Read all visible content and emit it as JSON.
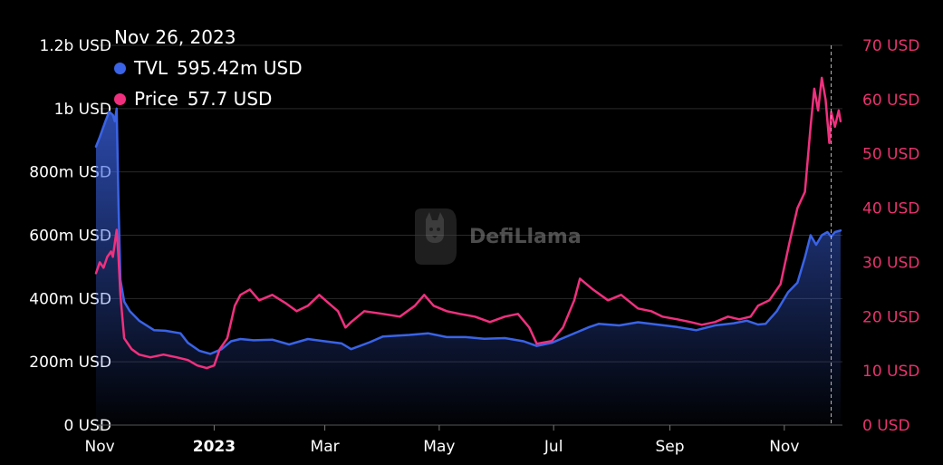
{
  "colors": {
    "tvl": "#3a63e6",
    "price": "#f0307e",
    "price_axis": "#e8336f",
    "grid": "#2a2a2a",
    "background": "#000000"
  },
  "tooltip": {
    "date": "Nov 26, 2023",
    "tvl_label": "TVL",
    "tvl_value": "595.42m USD",
    "price_label": "Price",
    "price_value": "57.7 USD"
  },
  "watermark": {
    "text": "DefiLlama",
    "icon": "llama-logo-icon"
  },
  "chart_data": {
    "type": "line",
    "title": "",
    "xlabel": "",
    "ylabel": "",
    "x_range": [
      "2022-10-30",
      "2023-12-02"
    ],
    "y_left_range": [
      0,
      1200000000
    ],
    "y_right_range": [
      0,
      70
    ],
    "grid": true,
    "x_ticks": [
      {
        "date": "2022-11-01",
        "label": "Nov",
        "bold": false
      },
      {
        "date": "2023-01-01",
        "label": "2023",
        "bold": true
      },
      {
        "date": "2023-03-01",
        "label": "Mar",
        "bold": false
      },
      {
        "date": "2023-05-01",
        "label": "May",
        "bold": false
      },
      {
        "date": "2023-07-01",
        "label": "Jul",
        "bold": false
      },
      {
        "date": "2023-09-01",
        "label": "Sep",
        "bold": false
      },
      {
        "date": "2023-11-01",
        "label": "Nov",
        "bold": false
      }
    ],
    "y_left_ticks": [
      {
        "value": 0,
        "label": "0 USD"
      },
      {
        "value": 200000000,
        "label": "200m USD"
      },
      {
        "value": 400000000,
        "label": "400m USD"
      },
      {
        "value": 600000000,
        "label": "600m USD"
      },
      {
        "value": 800000000,
        "label": "800m USD"
      },
      {
        "value": 1000000000,
        "label": "1b USD"
      },
      {
        "value": 1200000000,
        "label": "1.2b USD"
      }
    ],
    "y_right_ticks": [
      {
        "value": 0,
        "label": "0 USD"
      },
      {
        "value": 10,
        "label": "10 USD"
      },
      {
        "value": 20,
        "label": "20 USD"
      },
      {
        "value": 30,
        "label": "30 USD"
      },
      {
        "value": 40,
        "label": "40 USD"
      },
      {
        "value": 50,
        "label": "50 USD"
      },
      {
        "value": 60,
        "label": "60 USD"
      },
      {
        "value": 70,
        "label": "70 USD"
      }
    ],
    "hover_date": "2023-11-26",
    "series": [
      {
        "name": "TVL",
        "axis": "left",
        "area": true,
        "points": [
          [
            "2022-10-30",
            880000000
          ],
          [
            "2022-11-01",
            910000000
          ],
          [
            "2022-11-04",
            960000000
          ],
          [
            "2022-11-06",
            990000000
          ],
          [
            "2022-11-08",
            980000000
          ],
          [
            "2022-11-09",
            960000000
          ],
          [
            "2022-11-10",
            1000000000
          ],
          [
            "2022-11-11",
            700000000
          ],
          [
            "2022-11-12",
            460000000
          ],
          [
            "2022-11-14",
            390000000
          ],
          [
            "2022-11-17",
            360000000
          ],
          [
            "2022-11-22",
            330000000
          ],
          [
            "2022-11-30",
            300000000
          ],
          [
            "2022-12-06",
            298000000
          ],
          [
            "2022-12-14",
            290000000
          ],
          [
            "2022-12-18",
            260000000
          ],
          [
            "2022-12-24",
            235000000
          ],
          [
            "2022-12-30",
            225000000
          ],
          [
            "2023-01-05",
            240000000
          ],
          [
            "2023-01-10",
            265000000
          ],
          [
            "2023-01-15",
            272000000
          ],
          [
            "2023-01-22",
            268000000
          ],
          [
            "2023-02-01",
            270000000
          ],
          [
            "2023-02-10",
            255000000
          ],
          [
            "2023-02-20",
            272000000
          ],
          [
            "2023-03-01",
            265000000
          ],
          [
            "2023-03-10",
            258000000
          ],
          [
            "2023-03-15",
            240000000
          ],
          [
            "2023-03-25",
            262000000
          ],
          [
            "2023-04-01",
            280000000
          ],
          [
            "2023-04-15",
            285000000
          ],
          [
            "2023-04-25",
            290000000
          ],
          [
            "2023-05-05",
            278000000
          ],
          [
            "2023-05-15",
            278000000
          ],
          [
            "2023-05-25",
            273000000
          ],
          [
            "2023-06-05",
            275000000
          ],
          [
            "2023-06-15",
            265000000
          ],
          [
            "2023-06-22",
            250000000
          ],
          [
            "2023-06-30",
            260000000
          ],
          [
            "2023-07-10",
            285000000
          ],
          [
            "2023-07-20",
            310000000
          ],
          [
            "2023-07-25",
            320000000
          ],
          [
            "2023-08-05",
            315000000
          ],
          [
            "2023-08-15",
            325000000
          ],
          [
            "2023-08-25",
            318000000
          ],
          [
            "2023-09-05",
            310000000
          ],
          [
            "2023-09-15",
            300000000
          ],
          [
            "2023-09-25",
            315000000
          ],
          [
            "2023-10-05",
            322000000
          ],
          [
            "2023-10-12",
            330000000
          ],
          [
            "2023-10-18",
            318000000
          ],
          [
            "2023-10-22",
            320000000
          ],
          [
            "2023-10-28",
            360000000
          ],
          [
            "2023-11-03",
            420000000
          ],
          [
            "2023-11-08",
            450000000
          ],
          [
            "2023-11-12",
            530000000
          ],
          [
            "2023-11-15",
            600000000
          ],
          [
            "2023-11-18",
            570000000
          ],
          [
            "2023-11-21",
            600000000
          ],
          [
            "2023-11-24",
            610000000
          ],
          [
            "2023-11-26",
            595420000
          ],
          [
            "2023-11-28",
            610000000
          ],
          [
            "2023-12-01",
            615000000
          ]
        ]
      },
      {
        "name": "Price",
        "axis": "right",
        "area": false,
        "points": [
          [
            "2022-10-30",
            28
          ],
          [
            "2022-11-01",
            30
          ],
          [
            "2022-11-03",
            29
          ],
          [
            "2022-11-05",
            31
          ],
          [
            "2022-11-07",
            32
          ],
          [
            "2022-11-08",
            31
          ],
          [
            "2022-11-10",
            36
          ],
          [
            "2022-11-11",
            31
          ],
          [
            "2022-11-12",
            24
          ],
          [
            "2022-11-14",
            16
          ],
          [
            "2022-11-18",
            14
          ],
          [
            "2022-11-22",
            13
          ],
          [
            "2022-11-28",
            12.5
          ],
          [
            "2022-12-05",
            13
          ],
          [
            "2022-12-12",
            12.5
          ],
          [
            "2022-12-18",
            12
          ],
          [
            "2022-12-23",
            11
          ],
          [
            "2022-12-28",
            10.5
          ],
          [
            "2023-01-01",
            11
          ],
          [
            "2023-01-04",
            14
          ],
          [
            "2023-01-08",
            16
          ],
          [
            "2023-01-12",
            22
          ],
          [
            "2023-01-15",
            24
          ],
          [
            "2023-01-20",
            25
          ],
          [
            "2023-01-25",
            23
          ],
          [
            "2023-02-01",
            24
          ],
          [
            "2023-02-08",
            22.5
          ],
          [
            "2023-02-14",
            21
          ],
          [
            "2023-02-20",
            22
          ],
          [
            "2023-02-26",
            24
          ],
          [
            "2023-03-03",
            22.5
          ],
          [
            "2023-03-08",
            21
          ],
          [
            "2023-03-12",
            18
          ],
          [
            "2023-03-15",
            19
          ],
          [
            "2023-03-22",
            21
          ],
          [
            "2023-04-01",
            20.5
          ],
          [
            "2023-04-10",
            20
          ],
          [
            "2023-04-18",
            22
          ],
          [
            "2023-04-23",
            24
          ],
          [
            "2023-04-28",
            22
          ],
          [
            "2023-05-05",
            21
          ],
          [
            "2023-05-12",
            20.5
          ],
          [
            "2023-05-20",
            20
          ],
          [
            "2023-05-28",
            19
          ],
          [
            "2023-06-05",
            20
          ],
          [
            "2023-06-12",
            20.5
          ],
          [
            "2023-06-18",
            18
          ],
          [
            "2023-06-22",
            15
          ],
          [
            "2023-06-30",
            15.5
          ],
          [
            "2023-07-06",
            18
          ],
          [
            "2023-07-12",
            23
          ],
          [
            "2023-07-15",
            27
          ],
          [
            "2023-07-22",
            25
          ],
          [
            "2023-07-30",
            23
          ],
          [
            "2023-08-06",
            24
          ],
          [
            "2023-08-15",
            21.5
          ],
          [
            "2023-08-22",
            21
          ],
          [
            "2023-08-28",
            20
          ],
          [
            "2023-09-05",
            19.5
          ],
          [
            "2023-09-12",
            19
          ],
          [
            "2023-09-18",
            18.5
          ],
          [
            "2023-09-25",
            19
          ],
          [
            "2023-10-02",
            20
          ],
          [
            "2023-10-08",
            19.5
          ],
          [
            "2023-10-14",
            20
          ],
          [
            "2023-10-18",
            22
          ],
          [
            "2023-10-24",
            23
          ],
          [
            "2023-10-30",
            26
          ],
          [
            "2023-11-04",
            34
          ],
          [
            "2023-11-08",
            40
          ],
          [
            "2023-11-12",
            43
          ],
          [
            "2023-11-15",
            55
          ],
          [
            "2023-11-17",
            62
          ],
          [
            "2023-11-19",
            58
          ],
          [
            "2023-11-21",
            64
          ],
          [
            "2023-11-23",
            60
          ],
          [
            "2023-11-25",
            52
          ],
          [
            "2023-11-26",
            57.7
          ],
          [
            "2023-11-28",
            55
          ],
          [
            "2023-11-30",
            58
          ],
          [
            "2023-12-01",
            56
          ]
        ]
      }
    ]
  }
}
